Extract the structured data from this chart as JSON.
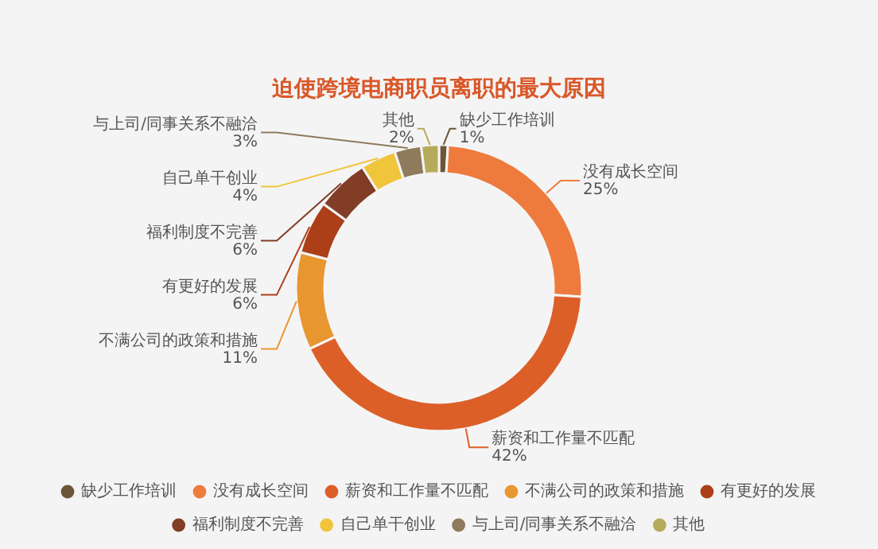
{
  "chart_data": {
    "type": "donut",
    "title": "迫使跨境电商职员离职的最大原因",
    "categories": [
      "缺少工作培训",
      "没有成长空间",
      "薪资和工作量不匹配",
      "不满公司的政策和措施",
      "有更好的发展",
      "福利制度不完善",
      "自己单干创业",
      "与上司/同事关系不融洽",
      "其他"
    ],
    "values": [
      1,
      25,
      42,
      11,
      6,
      6,
      4,
      3,
      2
    ],
    "value_labels": [
      "1%",
      "25%",
      "42%",
      "11%",
      "6%",
      "6%",
      "4%",
      "3%",
      "2%"
    ],
    "colors": [
      "#6b5637",
      "#ee7b3d",
      "#dc5f28",
      "#e8962f",
      "#ac3f18",
      "#823d26",
      "#f0c53c",
      "#8f7a5c",
      "#b6ab5c"
    ],
    "legend": "bottom"
  }
}
